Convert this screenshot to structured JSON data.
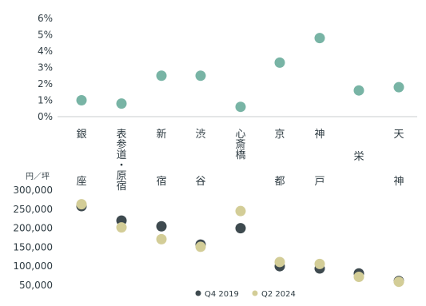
{
  "chart_data": [
    {
      "type": "scatter",
      "title": "",
      "xlabel": "",
      "ylabel": "",
      "categories": [
        "銀座",
        "表参道・原宿",
        "新宿",
        "渋谷",
        "心斎橋",
        "京都",
        "神戸",
        "栄",
        "天神"
      ],
      "category_labels": [
        {
          "top": "銀",
          "bottom": "座"
        },
        {
          "top": "表参道・原宿",
          "bottom": ""
        },
        {
          "top": "新",
          "bottom": "宿"
        },
        {
          "top": "渋",
          "bottom": "谷"
        },
        {
          "top": "心斎橋",
          "bottom": ""
        },
        {
          "top": "京",
          "bottom": "都"
        },
        {
          "top": "神",
          "bottom": "戸"
        },
        {
          "top": "栄",
          "bottom": ""
        },
        {
          "top": "天",
          "bottom": "神"
        }
      ],
      "series": [
        {
          "values": [
            1.0,
            0.8,
            2.5,
            2.5,
            0.6,
            3.3,
            4.8,
            1.6,
            1.8
          ],
          "color": "#78b4a5"
        }
      ],
      "y_ticks": [
        "0%",
        "1%",
        "2%",
        "3%",
        "4%",
        "5%",
        "6%"
      ],
      "ylim": [
        0,
        6
      ],
      "grid": false
    },
    {
      "type": "scatter",
      "title": "",
      "xlabel": "",
      "ylabel": "円／坪",
      "categories": [
        "銀座",
        "表参道・原宿",
        "新宿",
        "渋谷",
        "心斎橋",
        "京都",
        "神戸",
        "栄",
        "天神"
      ],
      "series": [
        {
          "name": "Q4 2019",
          "values": [
            258000,
            220000,
            205000,
            157000,
            200000,
            100000,
            94000,
            81000,
            61000
          ],
          "color": "#3e4a4f"
        },
        {
          "name": "Q2 2024",
          "values": [
            263000,
            202000,
            171000,
            151000,
            245000,
            111000,
            106000,
            72000,
            59000
          ],
          "color": "#d3cd97"
        }
      ],
      "y_ticks": [
        "50,000",
        "100,000",
        "150,000",
        "200,000",
        "250,000",
        "300,000"
      ],
      "ylim": [
        50000,
        300000
      ],
      "legend_position": "bottom",
      "grid": false
    }
  ]
}
